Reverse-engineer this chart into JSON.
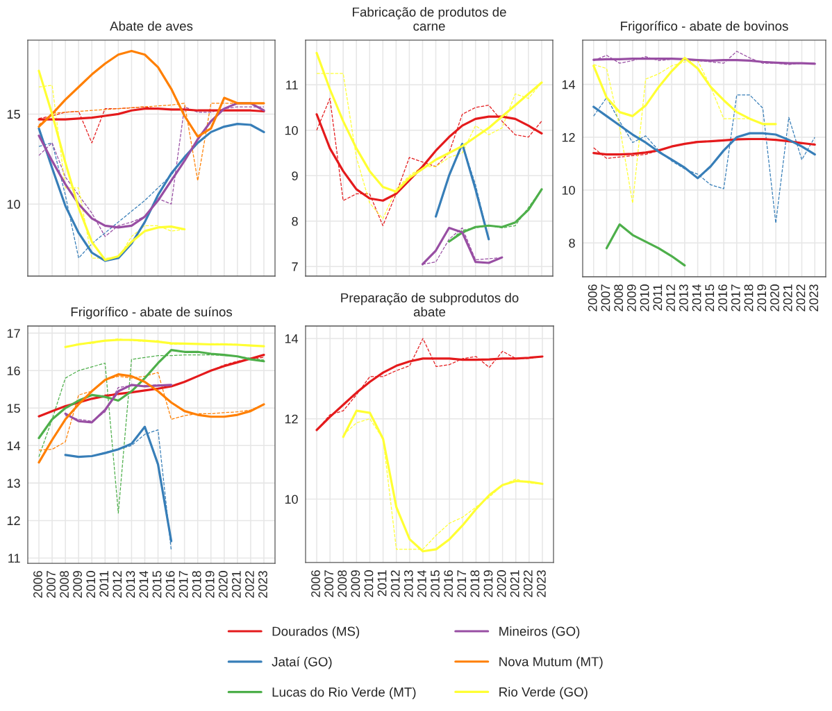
{
  "chart_data": [
    {
      "type": "line",
      "title": "Abate de aves",
      "x": [
        2006,
        2007,
        2008,
        2009,
        2010,
        2011,
        2012,
        2013,
        2014,
        2015,
        2016,
        2017,
        2018,
        2019,
        2020,
        2021,
        2022,
        2023
      ],
      "xlim": [
        2005.16,
        2023.84
      ],
      "xticks": [
        2006,
        2007,
        2008,
        2009,
        2010,
        2011,
        2012,
        2013,
        2014,
        2015,
        2016,
        2017,
        2018,
        2019,
        2020,
        2021,
        2022,
        2023
      ],
      "ylim": [
        6.0,
        19.1
      ],
      "yticks": [
        10,
        15
      ],
      "tick_labels": "y",
      "grid": true,
      "legend": "bottom",
      "series": [
        {
          "color": "#e41a1c",
          "line_style": "dashed",
          "values": [
            14.75,
            14.9,
            15.1,
            15.15,
            13.4,
            15.3,
            15.3,
            15.35,
            15.4,
            15.3,
            15.25,
            15.25,
            15.2,
            15.2,
            15.2,
            15.2,
            15.2,
            15.15
          ]
        },
        {
          "color": "#377eb8",
          "line_style": "dashed",
          "values": [
            13.2,
            13.4,
            10.5,
            7.0,
            7.8,
            8.4,
            9.0,
            9.6,
            10.2,
            10.9,
            11.6,
            12.6,
            13.4,
            14.0,
            14.3,
            14.45,
            14.4,
            14.0
          ]
        },
        {
          "color": "#984ea3",
          "line_style": "dashed",
          "values": [
            12.7,
            13.4,
            11.5,
            10.5,
            9.5,
            8.2,
            8.8,
            9.0,
            9.3,
            10.3,
            10.0,
            15.4,
            15.1,
            15.1,
            15.3,
            15.4,
            15.4,
            15.4
          ]
        },
        {
          "color": "#ff7f00",
          "line_style": "dashed",
          "values": [
            14.4,
            15.05,
            15.1,
            15.15,
            15.2,
            15.25,
            15.3,
            15.35,
            15.4,
            15.45,
            15.5,
            15.6,
            11.3,
            15.6,
            15.6,
            15.6,
            15.6,
            15.6
          ]
        },
        {
          "color": "#ffff33",
          "line_style": "dashed",
          "x": [
            2006,
            2007,
            2008,
            2009,
            2010,
            2011,
            2012,
            2013,
            2014,
            2015,
            2016,
            2017
          ],
          "values": [
            16.5,
            16.6,
            10.9,
            10.9,
            7.0,
            7.0,
            7.0,
            8.2,
            8.8,
            8.8,
            8.5,
            8.6
          ]
        },
        {
          "name": "Dourados (MS)",
          "color": "#e41a1c",
          "line_style": "solid",
          "values": [
            14.7,
            14.7,
            14.7,
            14.75,
            14.8,
            14.9,
            15.0,
            15.2,
            15.3,
            15.3,
            15.25,
            15.25,
            15.2,
            15.2,
            15.2,
            15.2,
            15.2,
            15.15
          ]
        },
        {
          "name": "Jataí (GO)",
          "color": "#377eb8",
          "line_style": "solid",
          "values": [
            14.2,
            12.0,
            9.9,
            8.4,
            7.3,
            6.85,
            7.0,
            7.8,
            9.0,
            10.5,
            11.7,
            12.6,
            13.4,
            14.0,
            14.3,
            14.45,
            14.4,
            14.0
          ]
        },
        {
          "name": "Mineiros (GO)",
          "color": "#984ea3",
          "line_style": "solid",
          "values": [
            13.8,
            12.4,
            11.1,
            10.0,
            9.2,
            8.8,
            8.7,
            8.8,
            9.3,
            10.2,
            11.3,
            12.4,
            13.6,
            14.6,
            15.3,
            15.6,
            15.6,
            15.2
          ]
        },
        {
          "name": "Nova Mutum (MT)",
          "color": "#ff7f00",
          "line_style": "solid",
          "values": [
            14.3,
            15.0,
            15.8,
            16.5,
            17.2,
            17.8,
            18.3,
            18.5,
            18.3,
            17.6,
            16.4,
            14.9,
            13.75,
            14.2,
            15.9,
            15.6,
            15.6,
            15.6
          ]
        },
        {
          "name": "Rio Verde (GO)",
          "color": "#ffff33",
          "line_style": "solid",
          "x": [
            2006,
            2007,
            2008,
            2009,
            2010,
            2011,
            2012,
            2013,
            2014,
            2015,
            2016,
            2017
          ],
          "values": [
            17.4,
            15.0,
            12.3,
            9.8,
            7.9,
            6.9,
            7.1,
            7.9,
            8.5,
            8.7,
            8.75,
            8.6
          ]
        }
      ]
    },
    {
      "type": "line",
      "title": "Fabricação de produtos de\ncarne",
      "x": [
        2006,
        2007,
        2008,
        2009,
        2010,
        2011,
        2012,
        2013,
        2014,
        2015,
        2016,
        2017,
        2018,
        2019,
        2020,
        2021,
        2022,
        2023
      ],
      "xlim": [
        2005.16,
        2023.84
      ],
      "xticks": [
        2006,
        2007,
        2008,
        2009,
        2010,
        2011,
        2012,
        2013,
        2014,
        2015,
        2016,
        2017,
        2018,
        2019,
        2020,
        2021,
        2022,
        2023
      ],
      "ylim": [
        6.79,
        11.98
      ],
      "yticks": [
        7,
        8,
        9,
        10,
        11
      ],
      "tick_labels": "y",
      "grid": true,
      "legend": "bottom",
      "series": [
        {
          "color": "#e41a1c",
          "line_style": "dashed",
          "values": [
            10.0,
            10.7,
            8.45,
            8.6,
            8.6,
            7.9,
            8.6,
            9.4,
            9.3,
            9.2,
            9.5,
            10.35,
            10.5,
            10.55,
            10.2,
            9.9,
            9.85,
            10.2
          ]
        },
        {
          "color": "#377eb8",
          "line_style": "dashed",
          "x": [
            2015,
            2016,
            2017,
            2018,
            2019
          ],
          "values": [
            8.1,
            9.0,
            9.7,
            8.8,
            7.6
          ]
        },
        {
          "color": "#4daf4a",
          "line_style": "dashed",
          "x": [
            2016,
            2017,
            2018,
            2019,
            2020,
            2021,
            2022,
            2023
          ],
          "values": [
            7.55,
            7.8,
            7.85,
            7.9,
            7.85,
            7.9,
            8.3,
            8.7
          ]
        },
        {
          "color": "#984ea3",
          "line_style": "dashed",
          "x": [
            2014,
            2015,
            2016,
            2017,
            2018,
            2019,
            2020
          ],
          "values": [
            7.05,
            7.1,
            7.6,
            7.85,
            7.15,
            7.17,
            7.2
          ]
        },
        {
          "color": "#ffff33",
          "line_style": "dashed",
          "values": [
            11.25,
            11.25,
            11.25,
            9.4,
            8.4,
            8.05,
            8.7,
            9.0,
            9.2,
            9.2,
            9.4,
            9.5,
            10.1,
            9.9,
            10.05,
            10.8,
            10.7,
            11.05
          ]
        },
        {
          "name": "Dourados (MS)",
          "color": "#e41a1c",
          "line_style": "solid",
          "values": [
            10.35,
            9.6,
            9.1,
            8.7,
            8.5,
            8.45,
            8.6,
            8.9,
            9.2,
            9.55,
            9.85,
            10.1,
            10.25,
            10.3,
            10.3,
            10.25,
            10.1,
            9.93
          ]
        },
        {
          "name": "Jataí (GO)",
          "color": "#377eb8",
          "line_style": "solid",
          "x": [
            2015,
            2016,
            2017,
            2018,
            2019
          ],
          "values": [
            8.1,
            9.0,
            9.7,
            8.7,
            7.6
          ]
        },
        {
          "name": "Lucas do Rio Verde (MT)",
          "color": "#4daf4a",
          "line_style": "solid",
          "x": [
            2016,
            2017,
            2018,
            2019,
            2020,
            2021,
            2022,
            2023
          ],
          "values": [
            7.55,
            7.75,
            7.87,
            7.9,
            7.87,
            7.97,
            8.25,
            8.7
          ]
        },
        {
          "name": "Mineiros (GO)",
          "color": "#984ea3",
          "line_style": "solid",
          "x": [
            2014,
            2015,
            2016,
            2017,
            2018,
            2019,
            2020
          ],
          "values": [
            7.05,
            7.35,
            7.85,
            7.75,
            7.1,
            7.08,
            7.2
          ]
        },
        {
          "name": "Rio Verde (GO)",
          "color": "#ffff33",
          "line_style": "solid",
          "values": [
            11.7,
            10.9,
            10.2,
            9.6,
            9.1,
            8.75,
            8.65,
            8.95,
            9.15,
            9.35,
            9.5,
            9.65,
            9.85,
            10.05,
            10.3,
            10.55,
            10.8,
            11.05
          ]
        }
      ]
    },
    {
      "type": "line",
      "title": "Frigorífico - abate de bovinos",
      "x": [
        2006,
        2007,
        2008,
        2009,
        2010,
        2011,
        2012,
        2013,
        2014,
        2015,
        2016,
        2017,
        2018,
        2019,
        2020,
        2021,
        2022,
        2023
      ],
      "xlim": [
        2005.16,
        2023.84
      ],
      "xticks": [
        2006,
        2007,
        2008,
        2009,
        2010,
        2011,
        2012,
        2013,
        2014,
        2015,
        2016,
        2017,
        2018,
        2019,
        2020,
        2021,
        2022,
        2023
      ],
      "ylim": [
        6.72,
        15.67
      ],
      "yticks": [
        8,
        10,
        12,
        14
      ],
      "grid": true,
      "legend": "bottom",
      "series": [
        {
          "color": "#e41a1c",
          "line_style": "dashed",
          "values": [
            11.6,
            11.2,
            11.25,
            11.3,
            11.35,
            11.5,
            11.65,
            11.75,
            11.85,
            11.85,
            11.9,
            11.9,
            11.95,
            11.95,
            11.9,
            11.85,
            11.75,
            11.75
          ]
        },
        {
          "color": "#377eb8",
          "line_style": "dashed",
          "values": [
            12.8,
            13.5,
            12.6,
            11.8,
            12.05,
            11.5,
            11.1,
            10.8,
            10.6,
            10.2,
            10.05,
            13.6,
            13.6,
            13.1,
            8.75,
            12.75,
            11.15,
            12.0
          ]
        },
        {
          "color": "#984ea3",
          "line_style": "dashed",
          "values": [
            14.9,
            15.1,
            14.8,
            14.9,
            15.05,
            14.9,
            14.95,
            14.95,
            14.9,
            14.85,
            14.8,
            15.25,
            15.0,
            14.8,
            14.8,
            14.75,
            14.8,
            14.8
          ]
        },
        {
          "color": "#ffff33",
          "line_style": "dashed",
          "x": [
            2006,
            2007,
            2008,
            2009,
            2010,
            2011,
            2012,
            2013,
            2014,
            2015,
            2016,
            2017,
            2018,
            2019,
            2020
          ],
          "values": [
            14.75,
            14.6,
            12.4,
            9.5,
            14.2,
            14.4,
            14.7,
            14.85,
            14.9,
            13.9,
            12.7,
            12.7,
            12.7,
            12.5,
            12.5
          ]
        },
        {
          "name": "Dourados (MS)",
          "color": "#e41a1c",
          "line_style": "solid",
          "values": [
            11.4,
            11.35,
            11.35,
            11.37,
            11.42,
            11.5,
            11.65,
            11.75,
            11.82,
            11.85,
            11.88,
            11.92,
            11.93,
            11.93,
            11.9,
            11.85,
            11.78,
            11.72
          ]
        },
        {
          "name": "Jataí (GO)",
          "color": "#377eb8",
          "line_style": "solid",
          "values": [
            13.15,
            12.8,
            12.45,
            12.1,
            11.8,
            11.45,
            11.15,
            10.85,
            10.45,
            10.9,
            11.5,
            12.0,
            12.15,
            12.15,
            12.1,
            11.9,
            11.65,
            11.35
          ]
        },
        {
          "name": "Lucas do Rio Verde (MT)",
          "color": "#4daf4a",
          "line_style": "solid",
          "x": [
            2007,
            2008,
            2009,
            2010,
            2011,
            2012,
            2013
          ],
          "values": [
            7.8,
            8.7,
            8.3,
            8.05,
            7.8,
            7.5,
            7.15
          ]
        },
        {
          "name": "Mineiros (GO)",
          "color": "#984ea3",
          "line_style": "solid",
          "values": [
            14.93,
            14.95,
            14.95,
            14.97,
            14.97,
            14.97,
            14.97,
            14.95,
            14.92,
            14.9,
            14.92,
            14.92,
            14.9,
            14.85,
            14.82,
            14.8,
            14.8,
            14.78
          ]
        },
        {
          "name": "Rio Verde (GO)",
          "color": "#ffff33",
          "line_style": "solid",
          "x": [
            2006,
            2007,
            2008,
            2009,
            2010,
            2011,
            2012,
            2013,
            2014,
            2015,
            2016,
            2017,
            2018,
            2019,
            2020
          ],
          "values": [
            14.7,
            13.5,
            12.95,
            12.8,
            13.2,
            13.9,
            14.5,
            15.0,
            14.6,
            13.9,
            13.4,
            12.95,
            12.7,
            12.5,
            12.5
          ]
        }
      ]
    },
    {
      "type": "line",
      "title": "Frigorífico - abate de suínos",
      "x": [
        2006,
        2007,
        2008,
        2009,
        2010,
        2011,
        2012,
        2013,
        2014,
        2015,
        2016,
        2017,
        2018,
        2019,
        2020,
        2021,
        2022,
        2023
      ],
      "xlim": [
        2005.16,
        2023.84
      ],
      "xticks": [
        2006,
        2007,
        2008,
        2009,
        2010,
        2011,
        2012,
        2013,
        2014,
        2015,
        2016,
        2017,
        2018,
        2019,
        2020,
        2021,
        2022,
        2023
      ],
      "ylim": [
        10.86,
        17.19
      ],
      "yticks": [
        11,
        12,
        13,
        14,
        15,
        16,
        17
      ],
      "grid": true,
      "legend": "bottom",
      "series": [
        {
          "color": "#e41a1c",
          "line_style": "dashed",
          "values": [
            14.78,
            14.92,
            15.05,
            15.15,
            15.25,
            15.35,
            15.38,
            15.42,
            15.47,
            15.52,
            15.58,
            15.7,
            15.85,
            16.0,
            16.15,
            16.25,
            16.32,
            16.35
          ]
        },
        {
          "color": "#377eb8",
          "line_style": "dashed",
          "x": [
            2008,
            2009,
            2010,
            2011,
            2012,
            2013,
            2014,
            2015,
            2016
          ],
          "values": [
            13.75,
            13.7,
            13.72,
            13.82,
            13.9,
            14.0,
            14.3,
            14.42,
            11.2
          ]
        },
        {
          "color": "#4daf4a",
          "line_style": "dashed",
          "values": [
            13.7,
            14.7,
            15.8,
            16.0,
            16.1,
            16.2,
            12.2,
            16.3,
            16.35,
            16.4,
            16.4,
            16.42,
            16.42,
            16.42,
            16.4,
            16.38,
            16.33,
            16.28
          ]
        },
        {
          "color": "#984ea3",
          "line_style": "dashed",
          "x": [
            2008,
            2009,
            2010,
            2011,
            2012,
            2013,
            2014,
            2015,
            2016
          ],
          "values": [
            14.8,
            14.7,
            14.65,
            14.9,
            15.55,
            15.6,
            15.6,
            15.62,
            15.62
          ]
        },
        {
          "color": "#ff7f00",
          "line_style": "dashed",
          "values": [
            13.88,
            13.9,
            14.1,
            15.35,
            15.45,
            15.75,
            15.85,
            15.8,
            15.85,
            15.95,
            14.7,
            14.8,
            14.85,
            14.85,
            14.88,
            14.9,
            14.95,
            15.1
          ]
        },
        {
          "color": "#ffff33",
          "line_style": "dashed",
          "x": [
            2008,
            2009,
            2010,
            2011,
            2012,
            2013,
            2014,
            2015,
            2016,
            2017,
            2018,
            2019,
            2020,
            2021,
            2022,
            2023
          ],
          "values": [
            16.62,
            16.72,
            16.72,
            16.8,
            16.85,
            16.8,
            16.78,
            16.8,
            16.7,
            16.7,
            16.7,
            16.72,
            16.72,
            16.7,
            16.68,
            16.65
          ]
        },
        {
          "name": "Dourados (MS)",
          "color": "#e41a1c",
          "line_style": "solid",
          "values": [
            14.78,
            14.92,
            15.05,
            15.15,
            15.25,
            15.32,
            15.38,
            15.42,
            15.47,
            15.52,
            15.58,
            15.7,
            15.85,
            16.0,
            16.12,
            16.22,
            16.32,
            16.42
          ]
        },
        {
          "name": "Jataí (GO)",
          "color": "#377eb8",
          "line_style": "solid",
          "x": [
            2008,
            2009,
            2010,
            2011,
            2012,
            2013,
            2014,
            2015,
            2016
          ],
          "values": [
            13.75,
            13.7,
            13.72,
            13.8,
            13.9,
            14.05,
            14.5,
            13.5,
            11.45
          ]
        },
        {
          "name": "Lucas do Rio Verde (MT)",
          "color": "#4daf4a",
          "line_style": "solid",
          "values": [
            14.2,
            14.7,
            15.0,
            15.2,
            15.35,
            15.3,
            15.2,
            15.45,
            15.8,
            16.2,
            16.55,
            16.5,
            16.5,
            16.45,
            16.42,
            16.38,
            16.3,
            16.25
          ]
        },
        {
          "name": "Mineiros (GO)",
          "color": "#984ea3",
          "line_style": "solid",
          "x": [
            2008,
            2009,
            2010,
            2011,
            2012,
            2013,
            2014,
            2015,
            2016
          ],
          "values": [
            14.85,
            14.65,
            14.62,
            14.95,
            15.45,
            15.62,
            15.58,
            15.6,
            15.62
          ]
        },
        {
          "name": "Nova Mutum (MT)",
          "color": "#ff7f00",
          "line_style": "solid",
          "values": [
            13.55,
            14.15,
            14.7,
            15.1,
            15.45,
            15.75,
            15.9,
            15.85,
            15.7,
            15.45,
            15.15,
            14.92,
            14.82,
            14.77,
            14.77,
            14.82,
            14.92,
            15.1
          ]
        },
        {
          "name": "Rio Verde (GO)",
          "color": "#ffff33",
          "line_style": "solid",
          "x": [
            2008,
            2009,
            2010,
            2011,
            2012,
            2013,
            2014,
            2015,
            2016,
            2017,
            2018,
            2019,
            2020,
            2021,
            2022,
            2023
          ],
          "values": [
            16.63,
            16.7,
            16.75,
            16.8,
            16.82,
            16.82,
            16.8,
            16.77,
            16.73,
            16.72,
            16.71,
            16.7,
            16.7,
            16.69,
            16.67,
            16.65
          ]
        }
      ]
    },
    {
      "type": "line",
      "title": "Preparação de subprodutos do\nabate",
      "x": [
        2006,
        2007,
        2008,
        2009,
        2010,
        2011,
        2012,
        2013,
        2014,
        2015,
        2016,
        2017,
        2018,
        2019,
        2020,
        2021,
        2022,
        2023
      ],
      "xlim": [
        2005.16,
        2023.84
      ],
      "xticks": [
        2006,
        2007,
        2008,
        2009,
        2010,
        2011,
        2012,
        2013,
        2014,
        2015,
        2016,
        2017,
        2018,
        2019,
        2020,
        2021,
        2022,
        2023
      ],
      "ylim": [
        8.42,
        14.31
      ],
      "yticks": [
        10,
        12,
        14
      ],
      "grid": true,
      "legend": "bottom",
      "series": [
        {
          "color": "#e41a1c",
          "line_style": "dashed",
          "values": [
            11.72,
            12.1,
            12.2,
            12.6,
            13.05,
            13.05,
            13.2,
            13.32,
            14.0,
            13.3,
            13.35,
            13.5,
            13.55,
            13.28,
            13.68,
            13.5,
            13.5,
            13.55
          ]
        },
        {
          "color": "#ffff33",
          "line_style": "dashed",
          "x": [
            2008,
            2009,
            2010,
            2011,
            2012,
            2013,
            2014,
            2015,
            2016,
            2017,
            2018,
            2019,
            2020,
            2021,
            2022,
            2023
          ],
          "values": [
            11.6,
            11.9,
            12.0,
            11.5,
            8.75,
            8.75,
            8.75,
            9.1,
            9.4,
            9.55,
            9.8,
            10.05,
            10.35,
            10.5,
            10.4,
            10.38
          ]
        },
        {
          "name": "Dourados (MS)",
          "color": "#e41a1c",
          "line_style": "solid",
          "values": [
            11.72,
            12.05,
            12.35,
            12.65,
            12.92,
            13.15,
            13.32,
            13.43,
            13.5,
            13.5,
            13.5,
            13.47,
            13.47,
            13.48,
            13.5,
            13.5,
            13.52,
            13.55
          ]
        },
        {
          "name": "Rio Verde (GO)",
          "color": "#ffff33",
          "line_style": "solid",
          "x": [
            2008,
            2009,
            2010,
            2011,
            2012,
            2013,
            2014,
            2015,
            2016,
            2017,
            2018,
            2019,
            2020,
            2021,
            2022,
            2023
          ],
          "values": [
            11.55,
            12.2,
            12.15,
            11.5,
            9.8,
            9.0,
            8.7,
            8.75,
            9.0,
            9.35,
            9.75,
            10.1,
            10.35,
            10.45,
            10.43,
            10.38
          ]
        }
      ]
    }
  ]
}
